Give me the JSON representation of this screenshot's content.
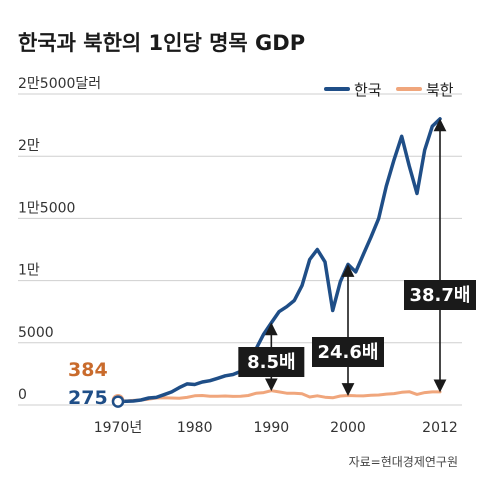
{
  "title": "한국과 북한의 1인당 명목 GDP",
  "source": "자료=현대경제연구원",
  "colors": {
    "south": "#1f4e87",
    "north": "#f0a67c",
    "grid": "#cfcfcf",
    "box": "#1a1a1a",
    "arrow": "#1a1a1a"
  },
  "chart_data": {
    "type": "line",
    "title": "한국과 북한의 1인당 명목 GDP",
    "xlim": [
      1970,
      2012
    ],
    "ylim": [
      0,
      25000
    ],
    "y_ticks": [
      {
        "value": 0,
        "label": "0"
      },
      {
        "value": 5000,
        "label": "5000"
      },
      {
        "value": 10000,
        "label": "1만"
      },
      {
        "value": 15000,
        "label": "1만5000"
      },
      {
        "value": 20000,
        "label": "2만"
      },
      {
        "value": 25000,
        "label": "2만5000달러"
      }
    ],
    "x_ticks": [
      {
        "value": 1970,
        "label": "1970년"
      },
      {
        "value": 1980,
        "label": "1980"
      },
      {
        "value": 1990,
        "label": "1990"
      },
      {
        "value": 2000,
        "label": "2000"
      },
      {
        "value": 2012,
        "label": "2012"
      }
    ],
    "legend_position": "top-right",
    "series": [
      {
        "name": "한국",
        "color": "#1f4e87",
        "x": [
          1970,
          1971,
          1972,
          1973,
          1974,
          1975,
          1976,
          1977,
          1978,
          1979,
          1980,
          1981,
          1982,
          1983,
          1984,
          1985,
          1986,
          1987,
          1988,
          1989,
          1990,
          1991,
          1992,
          1993,
          1994,
          1995,
          1996,
          1997,
          1998,
          1999,
          2000,
          2001,
          2002,
          2003,
          2004,
          2005,
          2006,
          2007,
          2008,
          2009,
          2010,
          2011,
          2012
        ],
        "y": [
          275,
          300,
          320,
          400,
          560,
          610,
          830,
          1050,
          1400,
          1700,
          1650,
          1850,
          1950,
          2150,
          2350,
          2450,
          2700,
          3300,
          4500,
          5700,
          6600,
          7500,
          7900,
          8400,
          9600,
          11700,
          12500,
          11500,
          7600,
          9900,
          11300,
          10700,
          12100,
          13500,
          15000,
          17600,
          19700,
          21600,
          19200,
          17000,
          20500,
          22400,
          23000
        ]
      },
      {
        "name": "북한",
        "color": "#f0a67c",
        "x": [
          1970,
          1971,
          1972,
          1973,
          1974,
          1975,
          1976,
          1977,
          1978,
          1979,
          1980,
          1981,
          1982,
          1983,
          1984,
          1985,
          1986,
          1987,
          1988,
          1989,
          1990,
          1991,
          1992,
          1993,
          1994,
          1995,
          1996,
          1997,
          1998,
          1999,
          2000,
          2001,
          2002,
          2003,
          2004,
          2005,
          2006,
          2007,
          2008,
          2009,
          2010,
          2011,
          2012
        ],
        "y": [
          384,
          320,
          370,
          400,
          470,
          560,
          580,
          560,
          540,
          610,
          740,
          760,
          700,
          710,
          720,
          690,
          700,
          760,
          940,
          1000,
          1150,
          1050,
          950,
          950,
          900,
          640,
          740,
          630,
          580,
          720,
          760,
          740,
          730,
          780,
          800,
          880,
          920,
          1020,
          1070,
          850,
          1000,
          1050,
          1050
        ]
      }
    ],
    "start_labels": {
      "north": "384",
      "south": "275"
    },
    "ratio_annotations": [
      {
        "label": "8.5배",
        "year": 1990
      },
      {
        "label": "24.6배",
        "year": 2000
      },
      {
        "label": "38.7배",
        "year": 2012
      }
    ]
  }
}
